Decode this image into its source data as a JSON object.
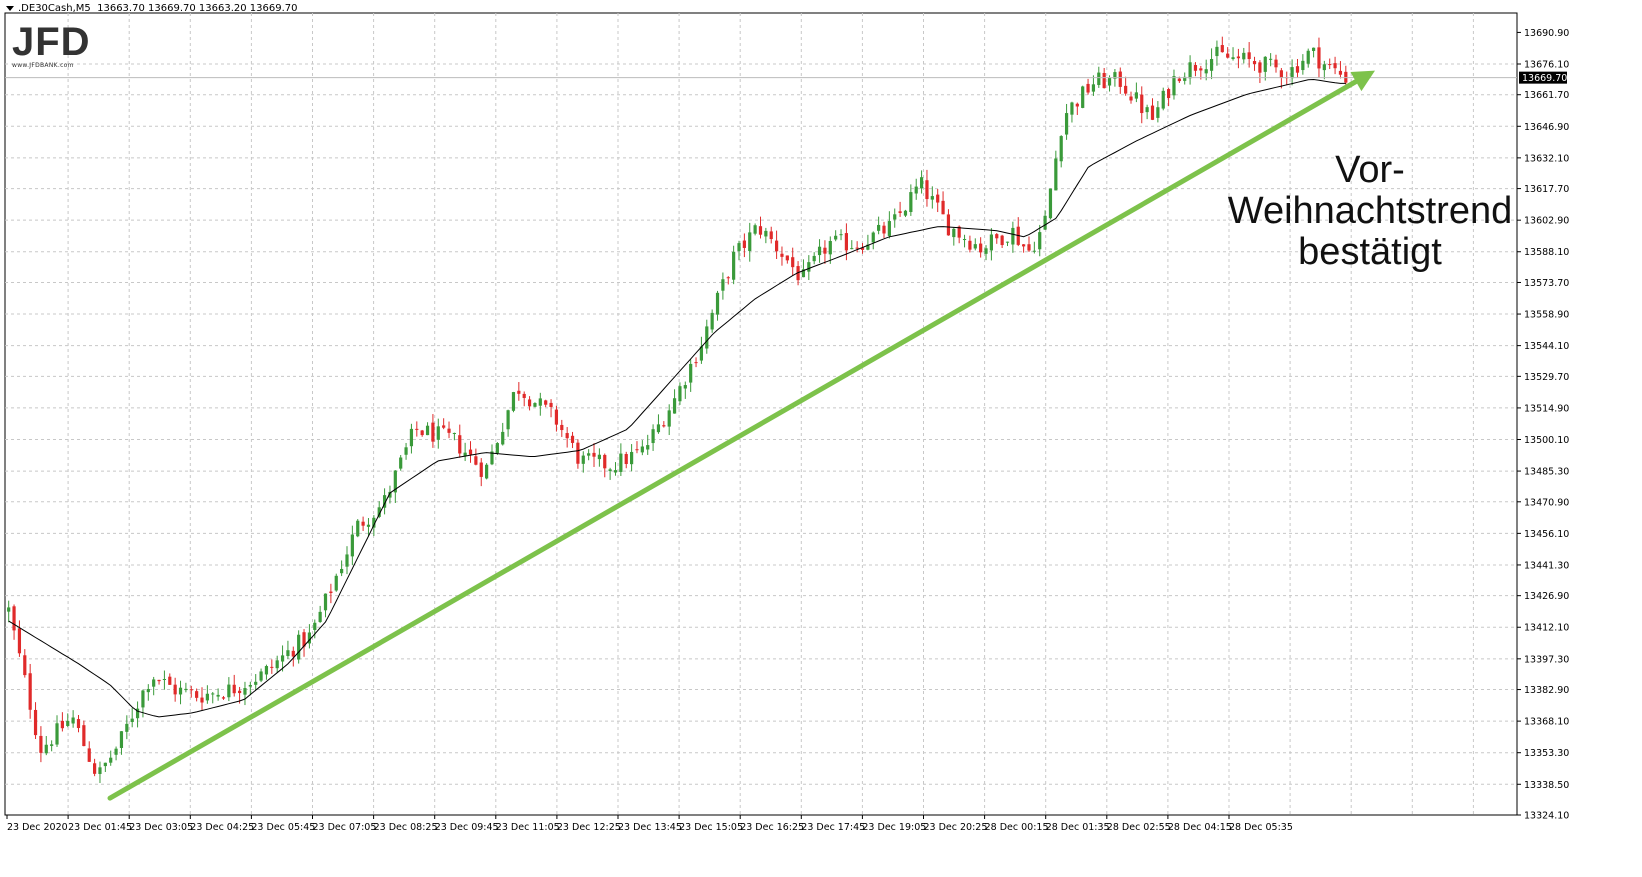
{
  "header": {
    "symbol": ".DE30Cash,M5",
    "ohlc": "13663.70 13669.70 13663.20 13669.70"
  },
  "logo": {
    "text": "JFD",
    "url_text": "www.JFDBANK.com"
  },
  "annotation": {
    "lines": [
      "Vor-",
      "Weihnachtstrend",
      "bestätigt"
    ]
  },
  "colors": {
    "up": "#3a9a3a",
    "down": "#e02a2a",
    "ma": "#000000",
    "trendline": "#7dc24b",
    "highlight": "#e6f5d9",
    "grid": "#c8c8c8"
  },
  "chart_data": {
    "type": "candlestick",
    "ylim": [
      13324.1,
      13700.0
    ],
    "y_ticks": [
      "13690.90",
      "13676.10",
      "13661.70",
      "13646.90",
      "13632.10",
      "13617.70",
      "13602.90",
      "13588.10",
      "13573.70",
      "13558.90",
      "13544.10",
      "13529.70",
      "13514.90",
      "13500.10",
      "13485.30",
      "13470.90",
      "13456.10",
      "13441.30",
      "13426.90",
      "13412.10",
      "13397.30",
      "13382.90",
      "13368.10",
      "13353.30",
      "13338.50",
      "13324.10"
    ],
    "x_ticks": [
      "23 Dec 2020",
      "23 Dec 01:45",
      "23 Dec 03:05",
      "23 Dec 04:25",
      "23 Dec 05:45",
      "23 Dec 07:05",
      "23 Dec 08:25",
      "23 Dec 09:45",
      "23 Dec 11:05",
      "23 Dec 12:25",
      "23 Dec 13:45",
      "23 Dec 15:05",
      "23 Dec 16:25",
      "23 Dec 17:45",
      "23 Dec 19:05",
      "23 Dec 20:25",
      "28 Dec 00:15",
      "28 Dec 01:35",
      "28 Dec 02:55",
      "28 Dec 04:15",
      "28 Dec 05:35"
    ],
    "current_price": "13669.70",
    "bar_count": 250,
    "close_path": [
      [
        0,
        13420
      ],
      [
        10,
        13355
      ],
      [
        20,
        13370
      ],
      [
        28,
        13342
      ],
      [
        35,
        13358
      ],
      [
        40,
        13375
      ],
      [
        45,
        13390
      ],
      [
        52,
        13383
      ],
      [
        60,
        13380
      ],
      [
        70,
        13383
      ],
      [
        80,
        13390
      ],
      [
        90,
        13403
      ],
      [
        95,
        13408
      ],
      [
        100,
        13425
      ],
      [
        110,
        13460
      ],
      [
        118,
        13470
      ],
      [
        128,
        13505
      ],
      [
        140,
        13500
      ],
      [
        150,
        13485
      ],
      [
        160,
        13525
      ],
      [
        172,
        13510
      ],
      [
        180,
        13490
      ],
      [
        190,
        13488
      ],
      [
        200,
        13495
      ],
      [
        210,
        13520
      ],
      [
        218,
        13545
      ],
      [
        228,
        13585
      ],
      [
        236,
        13600
      ],
      [
        242,
        13590
      ],
      [
        250,
        13575
      ],
      [
        258,
        13592
      ],
      [
        268,
        13592
      ],
      [
        278,
        13600
      ],
      [
        287,
        13620
      ],
      [
        296,
        13600
      ],
      [
        306,
        13590
      ],
      [
        316,
        13598
      ],
      [
        321,
        13588
      ],
      [
        326,
        13600
      ],
      [
        332,
        13652
      ],
      [
        342,
        13668
      ],
      [
        350,
        13668
      ],
      [
        360,
        13650
      ],
      [
        368,
        13672
      ],
      [
        380,
        13680
      ],
      [
        392,
        13677
      ],
      [
        403,
        13672
      ],
      [
        410,
        13682
      ],
      [
        415,
        13675
      ],
      [
        421,
        13670
      ]
    ],
    "ma_path": [
      [
        0,
        13415
      ],
      [
        22,
        13395
      ],
      [
        32,
        13385
      ],
      [
        40,
        13373
      ],
      [
        47,
        13370
      ],
      [
        58,
        13372
      ],
      [
        74,
        13378
      ],
      [
        88,
        13395
      ],
      [
        100,
        13415
      ],
      [
        110,
        13445
      ],
      [
        120,
        13475
      ],
      [
        135,
        13490
      ],
      [
        150,
        13494
      ],
      [
        165,
        13492
      ],
      [
        180,
        13495
      ],
      [
        195,
        13505
      ],
      [
        210,
        13530
      ],
      [
        222,
        13550
      ],
      [
        235,
        13566
      ],
      [
        248,
        13578
      ],
      [
        262,
        13586
      ],
      [
        277,
        13595
      ],
      [
        293,
        13600
      ],
      [
        311,
        13598
      ],
      [
        320,
        13595
      ],
      [
        330,
        13604
      ],
      [
        340,
        13628
      ],
      [
        355,
        13640
      ],
      [
        372,
        13652
      ],
      [
        390,
        13662
      ],
      [
        410,
        13669
      ],
      [
        419,
        13667
      ]
    ],
    "highlight_box": {
      "x_range": [
        326,
        422
      ],
      "y_range": [
        13612,
        13685
      ]
    },
    "trendline": {
      "from": [
        36,
        13332
      ],
      "to": [
        458,
        13673
      ]
    }
  }
}
